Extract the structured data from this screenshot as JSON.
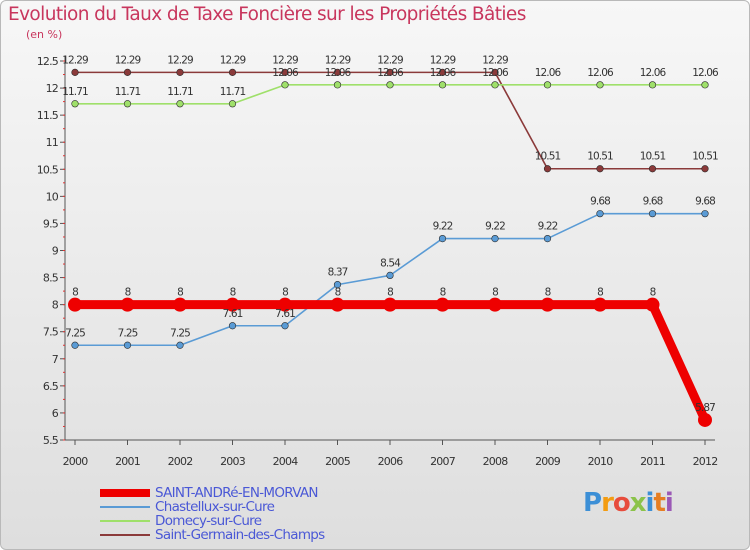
{
  "title": "Evolution du Taux de Taxe Foncière sur les Propriétés Bâties",
  "unit_label": "(en %)",
  "colors": {
    "title": "#c8365d",
    "legend_text": "#4a58d6"
  },
  "logo": {
    "text": "Proxiti",
    "colors": [
      "#3c8fd6",
      "#f39c12",
      "#e74c3c",
      "#8bc34a",
      "#3c8fd6",
      "#e67e22",
      "#9b59b6"
    ]
  },
  "chart_data": {
    "type": "line",
    "title": "Evolution du Taux de Taxe Foncière sur les Propriétés Bâties",
    "ylabel": "(en %)",
    "xlabel": "",
    "x": [
      "2000",
      "2001",
      "2002",
      "2003",
      "2004",
      "2005",
      "2006",
      "2007",
      "2008",
      "2009",
      "2010",
      "2011",
      "2012"
    ],
    "ylim": [
      5.5,
      12.5
    ],
    "yticks": [
      "5.5",
      "6",
      "6.5",
      "7",
      "7.5",
      "8",
      "8.5",
      "9",
      "9.5",
      "10",
      "10.5",
      "11",
      "11.5",
      "12",
      "12.5"
    ],
    "grid": false,
    "legend_position": "bottom-left",
    "series": [
      {
        "name": "SAINT-ANDRé-EN-MORVAN",
        "color": "#ee0000",
        "values": [
          8,
          8,
          8,
          8,
          8,
          8,
          8,
          8,
          8,
          8,
          8,
          8,
          5.87
        ],
        "labels": [
          "8",
          "8",
          "8",
          "8",
          "8",
          "8",
          "8",
          "8",
          "8",
          "8",
          "8",
          "8",
          "5.87"
        ]
      },
      {
        "name": "Chastellux-sur-Cure",
        "color": "#5a9bd5",
        "values": [
          7.25,
          7.25,
          7.25,
          7.61,
          7.61,
          8.37,
          8.54,
          9.22,
          9.22,
          9.22,
          9.68,
          9.68,
          9.68
        ],
        "labels": [
          "7.25",
          "7.25",
          "7.25",
          "7.61",
          "7.61",
          "8.37",
          "8.54",
          "9.22",
          "9.22",
          "9.22",
          "9.68",
          "9.68",
          "9.68"
        ]
      },
      {
        "name": "Domecy-sur-Cure",
        "color": "#9fe06a",
        "values": [
          11.71,
          11.71,
          11.71,
          11.71,
          12.06,
          12.06,
          12.06,
          12.06,
          12.06,
          12.06,
          12.06,
          12.06,
          12.06
        ],
        "labels": [
          "11.71",
          "11.71",
          "11.71",
          "11.71",
          "12.06",
          "12.06",
          "12.06",
          "12.06",
          "12.06",
          "12.06",
          "12.06",
          "12.06",
          "12.06"
        ]
      },
      {
        "name": "Saint-Germain-des-Champs",
        "color": "#8b3a3a",
        "values": [
          12.29,
          12.29,
          12.29,
          12.29,
          12.29,
          12.29,
          12.29,
          12.29,
          12.29,
          10.51,
          10.51,
          10.51,
          10.51
        ],
        "labels": [
          "12.29",
          "12.29",
          "12.29",
          "12.29",
          "12.29",
          "12.29",
          "12.29",
          "12.29",
          "12.29",
          "10.51",
          "10.51",
          "10.51",
          "10.51"
        ]
      }
    ]
  }
}
